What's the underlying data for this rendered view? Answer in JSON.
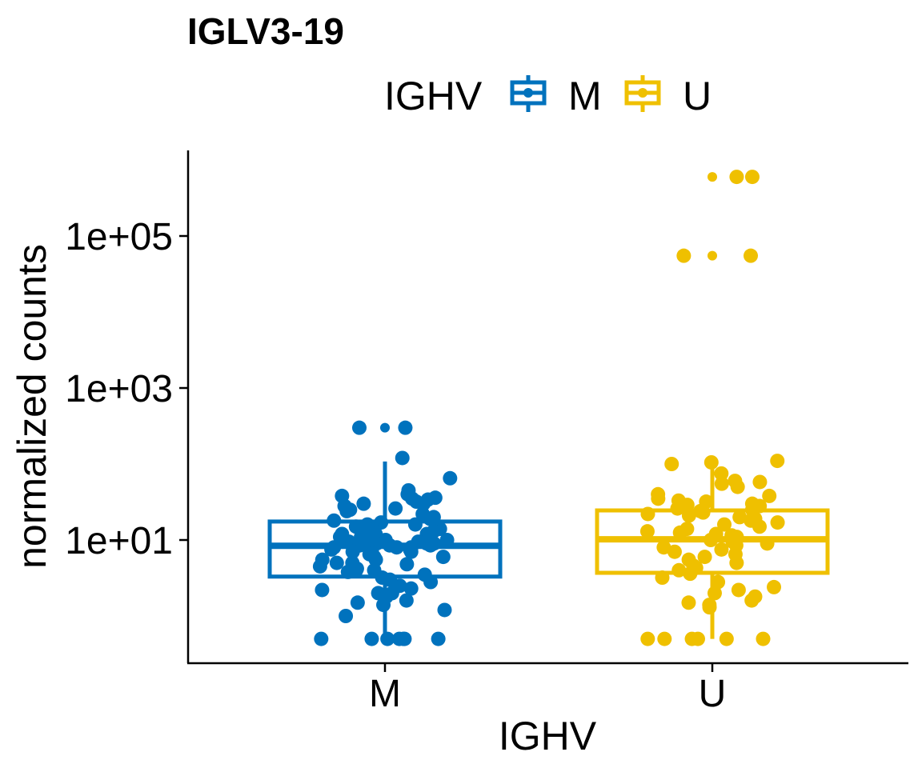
{
  "chart_data": {
    "type": "box",
    "title": "IGLV3-19",
    "xlabel": "IGHV",
    "ylabel": "normalized counts",
    "y_scale": "log10",
    "ylim": [
      0.2,
      1500000
    ],
    "y_ticks": [
      10,
      1000,
      100000
    ],
    "y_tick_labels": [
      "1e+01",
      "1e+03",
      "1e+05"
    ],
    "categories": [
      "M",
      "U"
    ],
    "legend": {
      "title": "IGHV",
      "placement": "top",
      "entries": [
        "M",
        "U"
      ]
    },
    "grid": false,
    "colors": {
      "M": "#0072BD",
      "U": "#EFC000"
    },
    "series": [
      {
        "name": "M",
        "box": {
          "q1": 3.3,
          "median": 8.4,
          "q3": 17.5,
          "whisker_low": 0.5,
          "whisker_high": 108
        },
        "outliers": [
          300,
          300
        ],
        "points": [
          300,
          300,
          120,
          65,
          45,
          40,
          38,
          36,
          35,
          34,
          32,
          30,
          30,
          28,
          26,
          25,
          24,
          22,
          20,
          19,
          18,
          17,
          16,
          16,
          15,
          14,
          14,
          13,
          13,
          12,
          12,
          12,
          11,
          11,
          11,
          10,
          10,
          10,
          9.5,
          9.5,
          9,
          9,
          9,
          8.5,
          8.5,
          8.5,
          8,
          8,
          8,
          7.5,
          7.5,
          7,
          7,
          7,
          6.5,
          6.5,
          6,
          6,
          5.5,
          5.5,
          5,
          5,
          4.8,
          4.5,
          4.2,
          4,
          4,
          3.8,
          3.5,
          3.2,
          3,
          2.8,
          2.5,
          2.3,
          2.2,
          2,
          2,
          1.8,
          1.6,
          1.5,
          1.4,
          1.2,
          1,
          0.5,
          0.5,
          0.5,
          0.5,
          0.5,
          0.5,
          0.5
        ]
      },
      {
        "name": "U",
        "box": {
          "q1": 3.7,
          "median": 10.2,
          "q3": 24.5,
          "whisker_low": 0.5,
          "whisker_high": 100
        },
        "outliers": [
          600000,
          600000,
          55000,
          55000
        ],
        "points": [
          600000,
          600000,
          55000,
          55000,
          110,
          105,
          100,
          75,
          60,
          58,
          55,
          50,
          40,
          38,
          35,
          33,
          32,
          30,
          29,
          28,
          26,
          25,
          24,
          23,
          22,
          21,
          20,
          19,
          18,
          17,
          16,
          15,
          14,
          13,
          12.5,
          12,
          11.5,
          11,
          10.5,
          10,
          9.5,
          9,
          8.5,
          8,
          7.5,
          7,
          6.5,
          6,
          5.5,
          5,
          4.6,
          4.3,
          4,
          3.6,
          3.2,
          2.8,
          2.4,
          2.2,
          2,
          1.8,
          1.6,
          1.5,
          1.4,
          1.3,
          0.5,
          0.5,
          0.5,
          0.5,
          0.5,
          0.5
        ]
      }
    ]
  }
}
